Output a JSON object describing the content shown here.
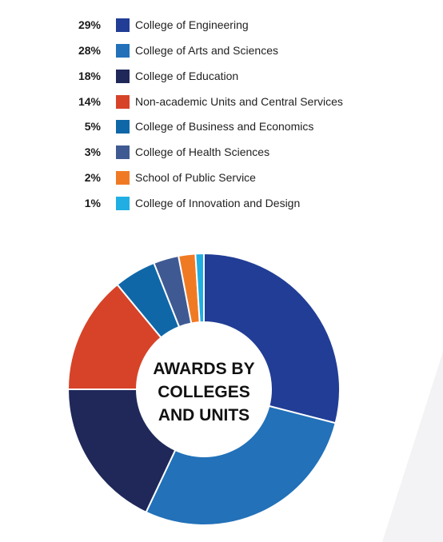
{
  "chart_data": {
    "type": "pie",
    "title_lines": [
      "AWARDS BY",
      "COLLEGES",
      "AND UNITS"
    ],
    "categories": [
      "College of Engineering",
      "College of Arts and Sciences",
      "College of Education",
      "Non-academic Units and Central Services",
      "College of Business and Economics",
      "College of Health Sciences",
      "School of Public Service",
      "College of Innovation and Design"
    ],
    "values": [
      29,
      28,
      18,
      14,
      5,
      3,
      2,
      1
    ],
    "value_labels": [
      "29%",
      "28%",
      "18%",
      "14%",
      "5%",
      "3%",
      "2%",
      "1%"
    ],
    "colors": [
      "#213d95",
      "#2271b9",
      "#1f2859",
      "#d74328",
      "#0f67a8",
      "#3f5a93",
      "#f07a24",
      "#21aee3"
    ],
    "legend_placement": "top"
  }
}
